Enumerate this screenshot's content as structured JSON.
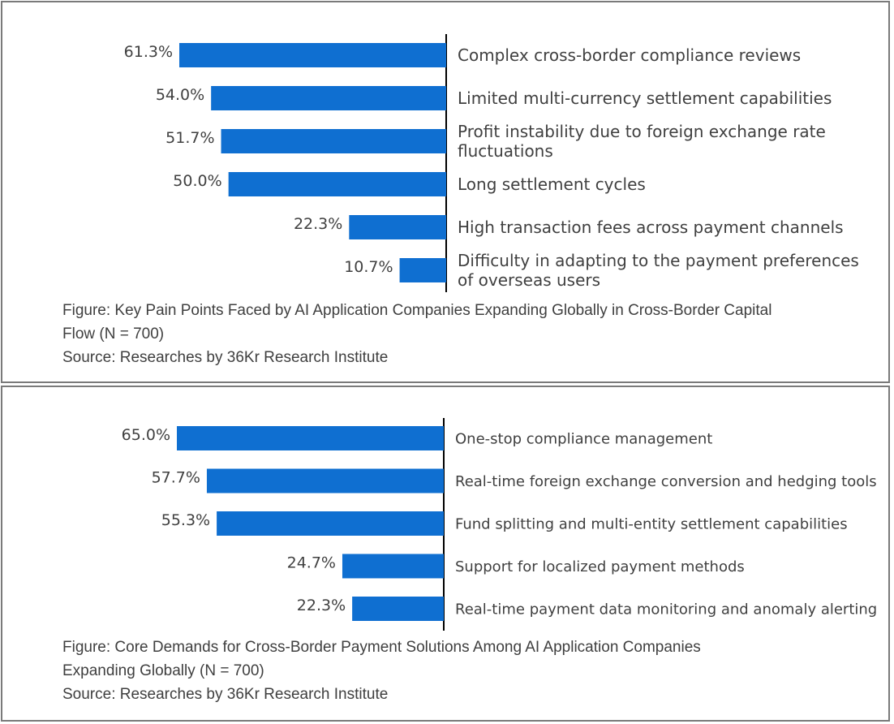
{
  "colors": {
    "bar": "#0f6fd1",
    "axis": "#000000",
    "text": "#404040",
    "border": "#7a7a7a"
  },
  "chart_data": [
    {
      "type": "bar",
      "orientation": "horizontal",
      "categories": [
        [
          "Complex cross-border compliance reviews"
        ],
        [
          "Limited multi-currency settlement capabilities"
        ],
        [
          "Profit instability due to foreign exchange rate",
          "fluctuations"
        ],
        [
          "Long settlement cycles"
        ],
        [
          "High transaction fees across payment channels"
        ],
        [
          "Difficulty in adapting to the payment preferences",
          "of overseas users"
        ]
      ],
      "values": [
        61.3,
        54.0,
        51.7,
        50.0,
        22.3,
        10.7
      ],
      "value_labels": [
        "61.3%",
        "54.0%",
        "51.7%",
        "50.0%",
        "22.3%",
        "10.7%"
      ],
      "xlim": [
        0,
        61.3
      ],
      "caption_lines": [
        "Figure: Key Pain Points Faced by AI Application Companies Expanding Globally in Cross-Border Capital",
        "Flow (N = 700)"
      ],
      "source": "Source: Researches by 36Kr Research Institute"
    },
    {
      "type": "bar",
      "orientation": "horizontal",
      "categories": [
        [
          "One-stop compliance management"
        ],
        [
          "Real-time foreign exchange conversion and hedging tools"
        ],
        [
          "Fund splitting and multi-entity settlement capabilities"
        ],
        [
          "Support for localized payment methods"
        ],
        [
          "Real-time payment data monitoring and anomaly alerting"
        ]
      ],
      "values": [
        65.0,
        57.7,
        55.3,
        24.7,
        22.3
      ],
      "value_labels": [
        "65.0%",
        "57.7%",
        "55.3%",
        "24.7%",
        "22.3%"
      ],
      "xlim": [
        0,
        65.0
      ],
      "caption_lines": [
        "Figure: Core Demands for Cross-Border Payment Solutions Among AI Application Companies",
        "Expanding Globally (N = 700)"
      ],
      "source": "Source: Researches by 36Kr Research Institute"
    }
  ]
}
